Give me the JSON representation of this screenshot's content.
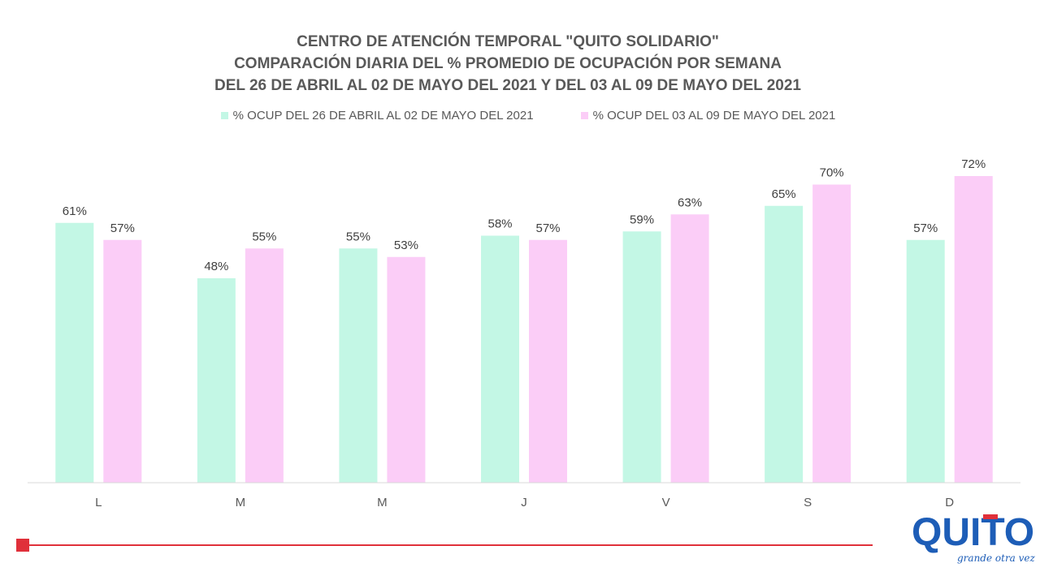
{
  "colors": {
    "series1": "#c3f7e5",
    "series2": "#fbcdf7",
    "axis": "#d9d9d9",
    "text": "#595959",
    "accent_red": "#e0303a",
    "logo_blue": "#1d5db7"
  },
  "chart_data": {
    "type": "bar",
    "title_lines": [
      "CENTRO DE ATENCIÓN TEMPORAL \"QUITO SOLIDARIO\"",
      "COMPARACIÓN  DIARIA DEL %  PROMEDIO DE OCUPACIÓN POR SEMANA",
      "DEL 26 DE ABRIL AL 02 DE MAYO DEL 2021 Y DEL 03 AL 09 DE MAYO DEL 2021"
    ],
    "categories": [
      "L",
      "M",
      "M",
      "J",
      "V",
      "S",
      "D"
    ],
    "series": [
      {
        "name": "% OCUP DEL 26 DE ABRIL AL 02 DE MAYO DEL  2021",
        "values": [
          61,
          48,
          55,
          58,
          59,
          65,
          57
        ],
        "labels": [
          "61%",
          "48%",
          "55%",
          "58%",
          "59%",
          "65%",
          "57%"
        ]
      },
      {
        "name": "% OCUP DEL 03 AL 09 DE MAYO DEL  2021",
        "values": [
          57,
          55,
          53,
          57,
          63,
          70,
          72
        ],
        "labels": [
          "57%",
          "55%",
          "53%",
          "57%",
          "63%",
          "70%",
          "72%"
        ]
      }
    ],
    "legend_position": "top",
    "grid": false,
    "ylim": [
      0,
      75
    ]
  },
  "logo": {
    "text": "QUITO",
    "tagline": "grande otra vez"
  }
}
